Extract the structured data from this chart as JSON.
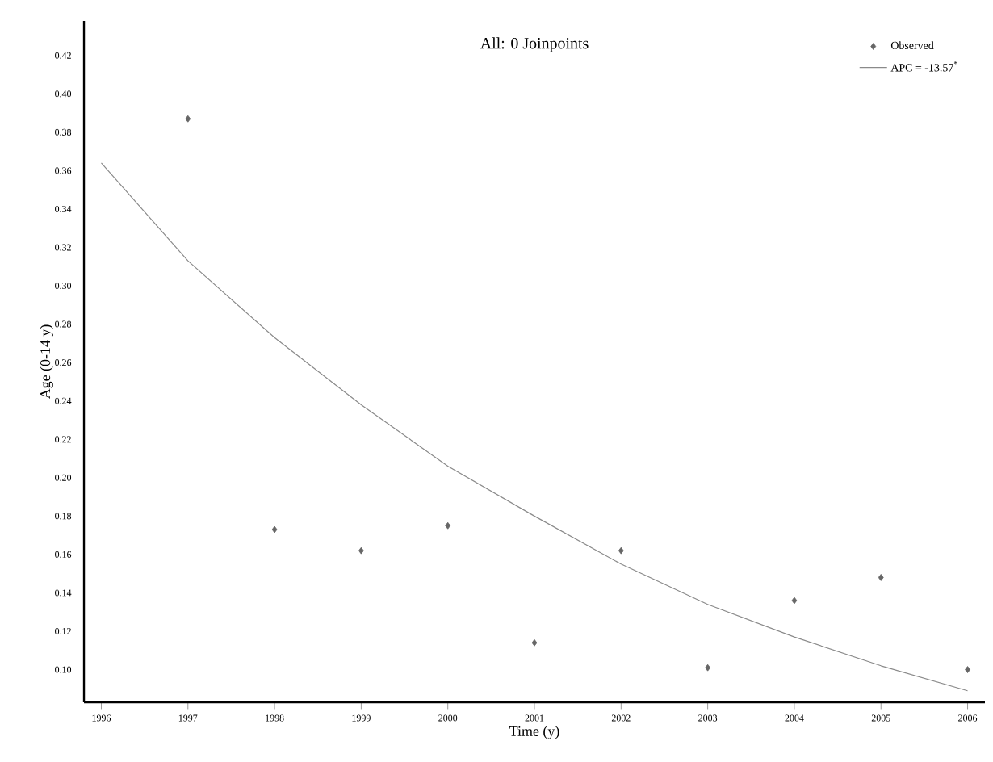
{
  "chart_data": {
    "type": "scatter",
    "title": "All: 0 Joinpoints",
    "xlabel": "Time (y)",
    "ylabel": "Age (0-14 y)",
    "xlim": [
      1995.8,
      2006.2
    ],
    "ylim": [
      0.083,
      0.438
    ],
    "xticks": [
      1996,
      1997,
      1998,
      1999,
      2000,
      2001,
      2002,
      2003,
      2004,
      2005,
      2006
    ],
    "yticks": [
      {
        "value": 0.1,
        "label": "0.10"
      },
      {
        "value": 0.12,
        "label": "0.12"
      },
      {
        "value": 0.14,
        "label": "0.14"
      },
      {
        "value": 0.16,
        "label": "0.16"
      },
      {
        "value": 0.18,
        "label": "0.18"
      },
      {
        "value": 0.2,
        "label": "0.20"
      },
      {
        "value": 0.22,
        "label": "0.22"
      },
      {
        "value": 0.24,
        "label": "0.24"
      },
      {
        "value": 0.26,
        "label": "0.26"
      },
      {
        "value": 0.28,
        "label": "0.28"
      },
      {
        "value": 0.3,
        "label": "0.30"
      },
      {
        "value": 0.32,
        "label": "0.32"
      },
      {
        "value": 0.34,
        "label": "0.34"
      },
      {
        "value": 0.36,
        "label": "0.36"
      },
      {
        "value": 0.38,
        "label": "0.38"
      },
      {
        "value": 0.4,
        "label": "0.40"
      },
      {
        "value": 0.42,
        "label": "0.42"
      }
    ],
    "legend": "top right",
    "grid": false,
    "series": [
      {
        "name": "Observed",
        "marker": "diamond",
        "color": "#666666",
        "x": [
          1997,
          1998,
          1999,
          2000,
          2001,
          2002,
          2003,
          2004,
          2005,
          2006
        ],
        "values": [
          0.387,
          0.173,
          0.162,
          0.175,
          0.114,
          0.162,
          0.101,
          0.136,
          0.148,
          0.1
        ]
      },
      {
        "name": "APC = -13.57$^{*}$",
        "type": "line",
        "line_style": "solid",
        "color": "#8a8a8a",
        "x": [
          1996,
          1997,
          1998,
          1999,
          2000,
          2001,
          2002,
          2003,
          2004,
          2005,
          2006
        ],
        "values": [
          0.364,
          0.313,
          0.273,
          0.238,
          0.206,
          0.18,
          0.155,
          0.134,
          0.117,
          0.102,
          0.089
        ]
      }
    ]
  }
}
